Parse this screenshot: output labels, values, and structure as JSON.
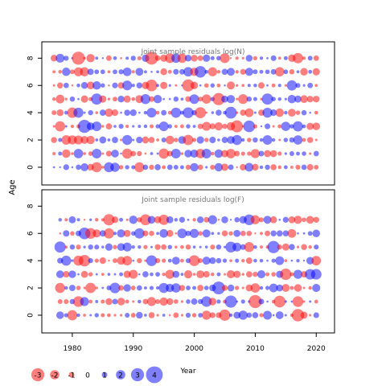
{
  "chart_data": {
    "type": "scatter",
    "ylabel": "Age",
    "xlabel": "Year",
    "x_ticks": [
      1980,
      1990,
      2000,
      2010,
      2020
    ],
    "x_range": [
      1975,
      2023
    ],
    "panels": [
      {
        "title": "Joint sample residuals log(N)",
        "y_ticks": [
          0,
          2,
          4,
          6,
          8
        ],
        "ages": [
          0,
          1,
          2,
          3,
          4,
          5,
          6,
          7,
          8
        ],
        "y_range": [
          -1.3,
          9.2
        ],
        "years": [
          1977,
          2020
        ],
        "seed": 17
      },
      {
        "title": "Joint sample residuals log(F)",
        "y_ticks": [
          0,
          2,
          4,
          6,
          8
        ],
        "ages": [
          0,
          1,
          2,
          3,
          4,
          5,
          6,
          7
        ],
        "y_range": [
          -1.3,
          9.2
        ],
        "years": [
          1978,
          2020
        ],
        "seed": 41
      }
    ],
    "legend": {
      "values": [
        -3,
        -2,
        -1,
        0,
        1,
        2,
        3,
        4
      ],
      "labels": [
        "-3",
        "-2",
        "-1",
        "0",
        "1",
        "2",
        "3",
        "4"
      ]
    },
    "colors": {
      "positive": "#0000ff",
      "negative": "#ff0000",
      "point_alpha": 0.5,
      "title_text": "#777777"
    }
  }
}
